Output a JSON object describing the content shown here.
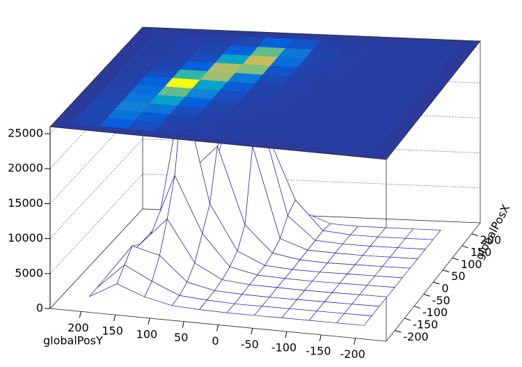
{
  "chart_data": {
    "type": "surface",
    "x_label": "globalPosX",
    "y_label": "globalPosY",
    "x": [
      -200,
      -160,
      -120,
      -80,
      -40,
      0,
      40,
      80,
      120,
      160,
      200
    ],
    "y": [
      -200,
      -160,
      -120,
      -80,
      -40,
      0,
      40,
      80,
      120,
      160,
      200
    ],
    "z": [
      [
        300,
        300,
        300,
        300,
        300,
        300,
        400,
        600,
        1500,
        3000,
        800
      ],
      [
        300,
        300,
        300,
        300,
        300,
        300,
        500,
        800,
        2500,
        4500,
        900
      ],
      [
        300,
        300,
        300,
        300,
        300,
        400,
        600,
        1500,
        5000,
        6000,
        1000
      ],
      [
        300,
        300,
        300,
        300,
        400,
        500,
        900,
        3000,
        9000,
        5000,
        800
      ],
      [
        300,
        300,
        300,
        300,
        400,
        600,
        1500,
        6000,
        14000,
        4000,
        700
      ],
      [
        300,
        300,
        300,
        300,
        400,
        700,
        2500,
        9000,
        25000,
        3000,
        600
      ],
      [
        300,
        300,
        300,
        300,
        500,
        1200,
        5000,
        16000,
        12000,
        1500,
        500
      ],
      [
        300,
        300,
        300,
        400,
        600,
        2000,
        15000,
        17000,
        3000,
        800,
        400
      ],
      [
        300,
        300,
        300,
        400,
        700,
        4000,
        18000,
        9000,
        1500,
        600,
        400
      ],
      [
        300,
        300,
        300,
        400,
        800,
        5000,
        14000,
        3000,
        900,
        500,
        300
      ],
      [
        300,
        300,
        300,
        300,
        500,
        2000,
        3000,
        1000,
        500,
        400,
        300
      ]
    ],
    "xlim": [
      -245,
      245
    ],
    "ylim": [
      245,
      -245
    ],
    "zlim": [
      0,
      26000
    ],
    "xticks": [
      -200,
      -150,
      -100,
      -50,
      0,
      50,
      100,
      150,
      200
    ],
    "yticks": [
      200,
      150,
      100,
      50,
      0,
      -50,
      -100,
      -150,
      -200
    ],
    "zticks": [
      0,
      5000,
      10000,
      15000,
      20000,
      25000
    ],
    "color": "#1c1ca8",
    "colormap": [
      "#2b3b9c",
      "#0363e1",
      "#1485d4",
      "#06a7c6",
      "#38b99e",
      "#92bf73",
      "#d9ba56",
      "#fcce2e",
      "#f9fb0e"
    ],
    "grid": true
  }
}
